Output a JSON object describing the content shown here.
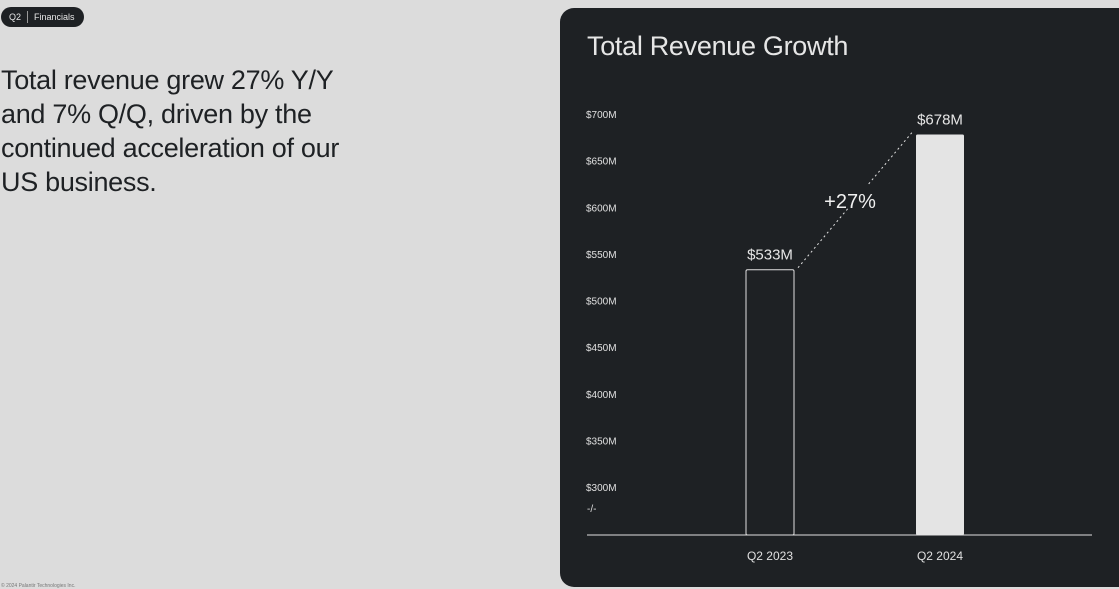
{
  "badge": {
    "quarter": "Q2",
    "section": "Financials"
  },
  "headline": "Total revenue grew 27% Y/Y and 7% Q/Q, driven by the continued acceleration of our US business.",
  "footer": "© 2024 Palantir Technologies Inc.",
  "colors": {
    "page_bg": "#dcdcdc",
    "panel_bg": "#1e2124",
    "bar_highlight": "#e4e4e4",
    "text_light": "#e6e6e6"
  },
  "chart_data": {
    "type": "bar",
    "title": "Total Revenue Growth",
    "categories": [
      "Q2 2023",
      "Q2 2024"
    ],
    "values": [
      533,
      678
    ],
    "value_labels": [
      "$533M",
      "$678M"
    ],
    "bar_styles": [
      "outline",
      "filled"
    ],
    "ylim": [
      280,
      700
    ],
    "yticks": [
      300,
      350,
      400,
      450,
      500,
      550,
      600,
      650,
      700
    ],
    "ytick_labels": [
      "$300M",
      "$350M",
      "$400M",
      "$450M",
      "$500M",
      "$550M",
      "$600M",
      "$650M",
      "$700M"
    ],
    "axis_break_mark": "-/-",
    "growth_annotation": "+27%",
    "grid": false,
    "xlabel": "",
    "ylabel": ""
  }
}
